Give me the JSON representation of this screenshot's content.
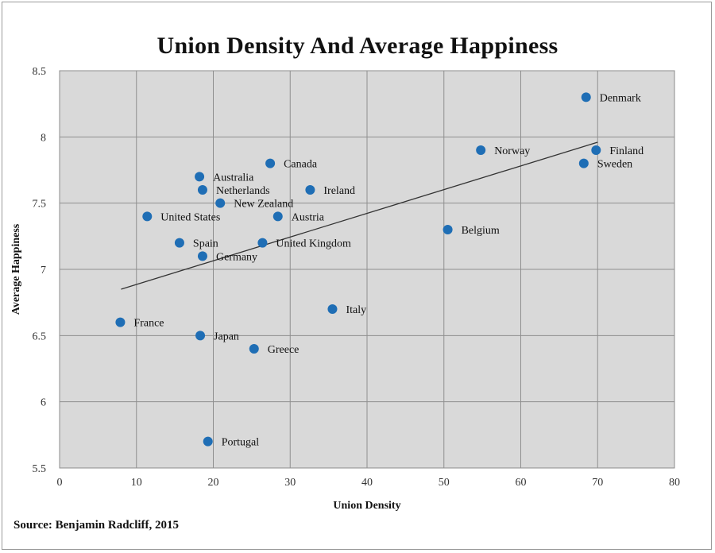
{
  "chart_data": {
    "type": "scatter",
    "title": "Union Density And Average Happiness",
    "xlabel": "Union Density",
    "ylabel": "Average Happiness",
    "source": "Source: Benjamin Radcliff, 2015",
    "xlim": [
      0,
      80
    ],
    "ylim": [
      5.5,
      8.5
    ],
    "xticks": [
      0,
      10,
      20,
      30,
      40,
      50,
      60,
      70,
      80
    ],
    "yticks": [
      5.5,
      6,
      6.5,
      7,
      7.5,
      8,
      8.5
    ],
    "grid": true,
    "point_color": "#1f6eb5",
    "trendline": {
      "x": [
        8,
        70
      ],
      "y": [
        6.85,
        7.96
      ]
    },
    "points": [
      {
        "label": "Denmark",
        "x": 68.5,
        "y": 8.3
      },
      {
        "label": "Norway",
        "x": 54.8,
        "y": 7.9
      },
      {
        "label": "Finland",
        "x": 69.8,
        "y": 7.9
      },
      {
        "label": "Sweden",
        "x": 68.2,
        "y": 7.8
      },
      {
        "label": "Canada",
        "x": 27.4,
        "y": 7.8
      },
      {
        "label": "Australia",
        "x": 18.2,
        "y": 7.7
      },
      {
        "label": "Netherlands",
        "x": 18.6,
        "y": 7.6
      },
      {
        "label": "Ireland",
        "x": 32.6,
        "y": 7.6
      },
      {
        "label": "New Zealand",
        "x": 20.9,
        "y": 7.5
      },
      {
        "label": "United States",
        "x": 11.4,
        "y": 7.4
      },
      {
        "label": "Austria",
        "x": 28.4,
        "y": 7.4
      },
      {
        "label": "Belgium",
        "x": 50.5,
        "y": 7.3
      },
      {
        "label": "Spain",
        "x": 15.6,
        "y": 7.2
      },
      {
        "label": "United Kingdom",
        "x": 26.4,
        "y": 7.2
      },
      {
        "label": "Germany",
        "x": 18.6,
        "y": 7.1
      },
      {
        "label": "Italy",
        "x": 35.5,
        "y": 6.7
      },
      {
        "label": "France",
        "x": 7.9,
        "y": 6.6
      },
      {
        "label": "Japan",
        "x": 18.3,
        "y": 6.5
      },
      {
        "label": "Greece",
        "x": 25.3,
        "y": 6.4
      },
      {
        "label": "Portugal",
        "x": 19.3,
        "y": 5.7
      }
    ]
  }
}
